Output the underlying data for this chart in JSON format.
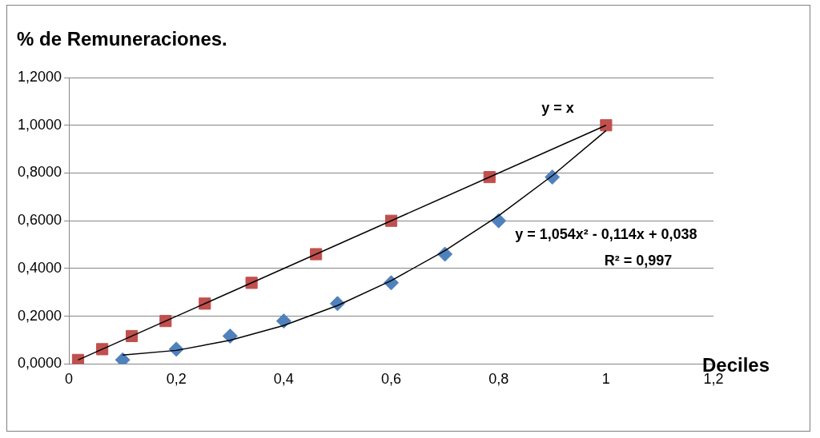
{
  "chart_data": {
    "type": "scatter",
    "ylabel": "% de Remuneraciones.",
    "xlabel": "Deciles",
    "xlim": [
      0,
      1.2
    ],
    "xticks": [
      {
        "value": 0,
        "label": "0"
      },
      {
        "value": 0.2,
        "label": "0,2"
      },
      {
        "value": 0.4,
        "label": "0,4"
      },
      {
        "value": 0.6,
        "label": "0,6"
      },
      {
        "value": 0.8,
        "label": "0,8"
      },
      {
        "value": 1,
        "label": "1"
      },
      {
        "value": 1.2,
        "label": "1,2"
      }
    ],
    "ylim": [
      0,
      1.2
    ],
    "yticks": [
      {
        "value": 0,
        "label": "0,0000"
      },
      {
        "value": 0.2,
        "label": "0,2000"
      },
      {
        "value": 0.4,
        "label": "0,4000"
      },
      {
        "value": 0.6,
        "label": "0,6000"
      },
      {
        "value": 0.8,
        "label": "0,8000"
      },
      {
        "value": 1,
        "label": "1,0000"
      },
      {
        "value": 1.2,
        "label": "1,2000"
      }
    ],
    "grid": "y",
    "legend": false,
    "series": [
      {
        "type": "line",
        "color": "#000000",
        "marker": "none",
        "x": [
          0.017,
          1
        ],
        "values": [
          0.017,
          1
        ]
      },
      {
        "type": "line",
        "color": "#000000",
        "marker": "none",
        "x": [
          0.1,
          0.2,
          0.3,
          0.4,
          0.5,
          0.6,
          0.7,
          0.8,
          0.9,
          1
        ],
        "values": [
          0.037,
          0.057,
          0.099,
          0.161,
          0.245,
          0.349,
          0.475,
          0.621,
          0.789,
          0.978
        ]
      },
      {
        "type": "scatter",
        "color": "#4f81bd",
        "marker": "diamond",
        "x": [
          0.1,
          0.2,
          0.3,
          0.4,
          0.5,
          0.6,
          0.7,
          0.8,
          0.9
        ],
        "values": [
          0.017,
          0.062,
          0.117,
          0.18,
          0.253,
          0.34,
          0.46,
          0.6,
          0.783
        ]
      },
      {
        "type": "scatter",
        "color": "#c0504d",
        "marker": "square",
        "x": [
          0.017,
          0.062,
          0.117,
          0.18,
          0.253,
          0.34,
          0.46,
          0.6,
          0.783,
          1
        ],
        "values": [
          0.017,
          0.062,
          0.117,
          0.18,
          0.253,
          0.34,
          0.46,
          0.6,
          0.783,
          1
        ]
      }
    ],
    "annotations": [
      "y = x",
      "y = 1,054x² - 0,114x + 0,038",
      "R² = 0,997"
    ]
  }
}
